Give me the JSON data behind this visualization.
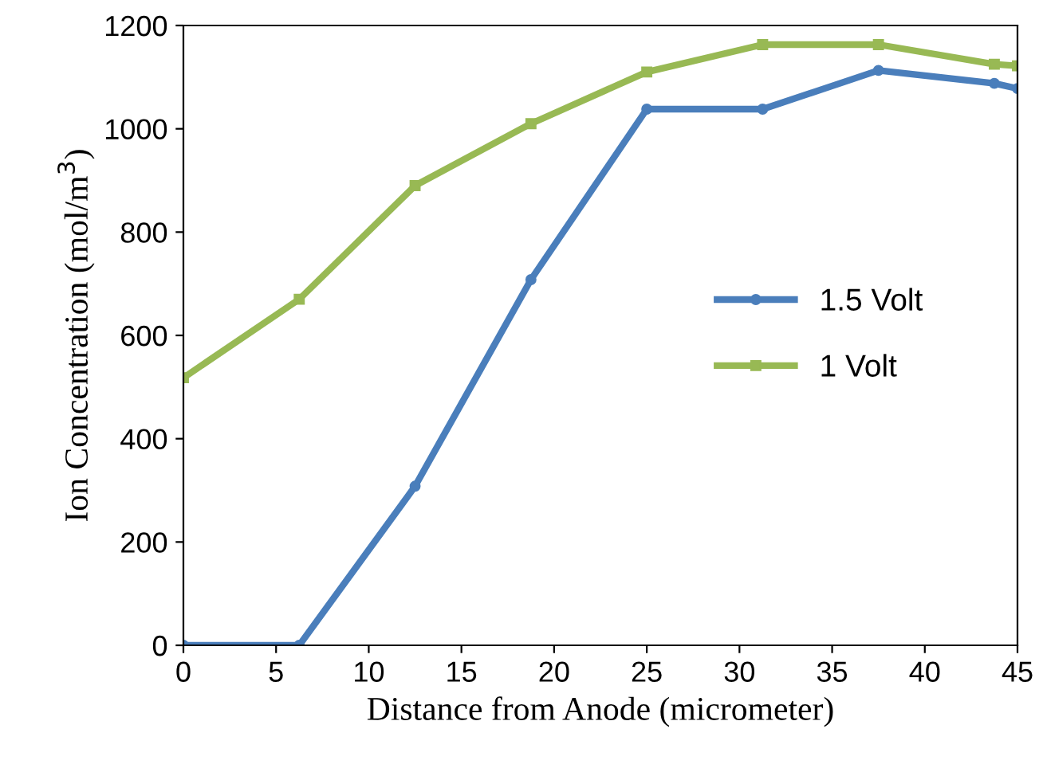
{
  "chart_data": {
    "type": "line",
    "xlabel": "Distance from Anode (micrometer)",
    "ylabel": "Ion Concentration (mol/m$^{3}$)",
    "x": [
      0,
      6.25,
      12.5,
      18.75,
      25,
      31.25,
      37.5,
      43.75,
      45
    ],
    "series": [
      {
        "name": "1.5 Volt",
        "color": "#4a7ebb",
        "marker": "circle",
        "values": [
          0,
          0,
          308,
          708,
          1038,
          1038,
          1113,
          1088,
          1078
        ]
      },
      {
        "name": "1 Volt",
        "color": "#98b954",
        "marker": "square",
        "values": [
          518,
          670,
          890,
          1010,
          1110,
          1163,
          1163,
          1125,
          1122
        ]
      }
    ],
    "xlim": [
      0,
      45
    ],
    "xticks": [
      0,
      5,
      10,
      15,
      20,
      25,
      30,
      35,
      40,
      45
    ],
    "ylim": [
      0,
      1200
    ],
    "yticks": [
      0,
      200,
      400,
      600,
      800,
      1000,
      1200
    ],
    "grid": false,
    "legend": "right",
    "line_style": "solid"
  }
}
